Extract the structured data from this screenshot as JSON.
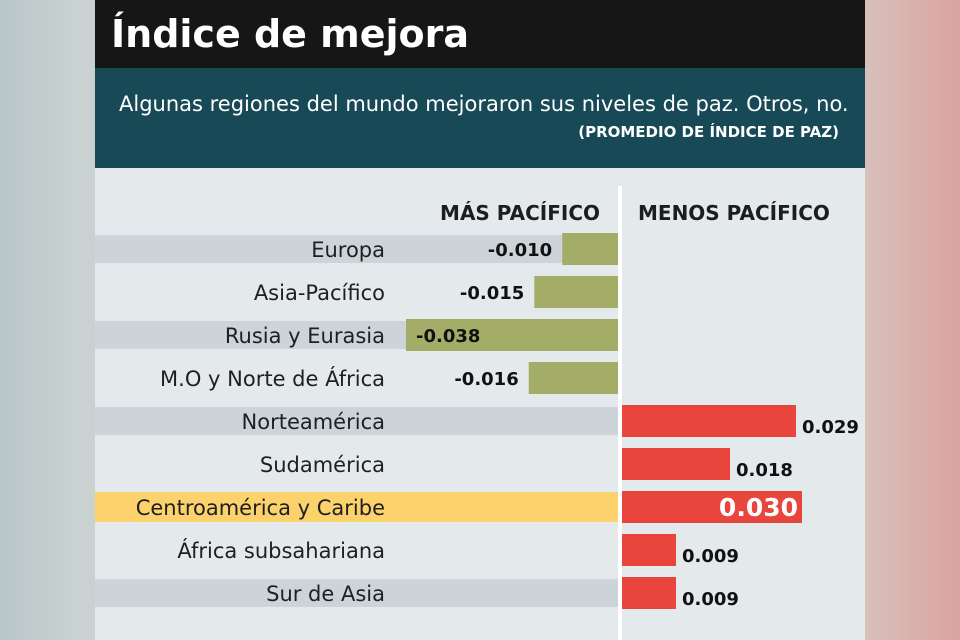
{
  "header": {
    "title": "Índice de mejora",
    "subtitle": "Algunas regiones del mundo mejoraron sus niveles de paz. Otros, no.",
    "unit_note": "(PROMEDIO DE ÍNDICE DE PAZ)"
  },
  "chart_data": {
    "type": "bar",
    "orientation": "horizontal-diverging",
    "negative_side_label": "MÁS PACÍFICO",
    "positive_side_label": "MENOS PACÍFICO",
    "categories": [
      "Europa",
      "Asia-Pacífico",
      "Rusia y Eurasia",
      "M.O y Norte de África",
      "Norteamérica",
      "Sudamérica",
      "Centroamérica y Caribe",
      "África subsahariana",
      "Sur de Asia"
    ],
    "values": [
      -0.01,
      -0.015,
      -0.038,
      -0.016,
      0.029,
      0.018,
      0.03,
      0.009,
      0.009
    ],
    "value_labels": [
      "-0.010",
      "-0.015",
      "-0.038",
      "-0.016",
      "0.029",
      "0.018",
      "0.030",
      "0.009",
      "0.009"
    ],
    "highlight_category": "Centroamérica y Caribe",
    "xlim": [
      -0.038,
      0.03
    ],
    "grid": false,
    "colors": {
      "negative": "#a4ad68",
      "positive": "#e8453c",
      "highlight_row": "#fcd26c",
      "row_band": "#ccd4d9",
      "zero_line": "#ffffff"
    }
  }
}
